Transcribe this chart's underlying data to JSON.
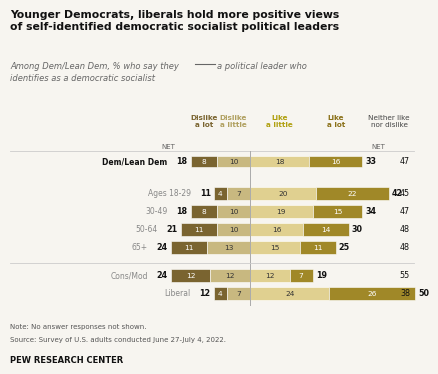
{
  "title": "Younger Democrats, liberals hold more positive views\nof self-identified democratic socialist political leaders",
  "subtitle": "Among Dem/Lean Dem, % who say they        a political leader who\nidentifies as a democratic socialist",
  "rows": [
    {
      "label": "Dem/Lean Dem",
      "bold_label": true,
      "net_dislike": 18,
      "dislike_lot": 8,
      "dislike_little": 10,
      "like_little": 18,
      "like_lot": 16,
      "net_like": 33,
      "neither": 47,
      "show_net_labels": true
    },
    {
      "label": "Ages 18-29",
      "bold_label": false,
      "net_dislike": 11,
      "dislike_lot": 4,
      "dislike_little": 7,
      "like_little": 20,
      "like_lot": 22,
      "net_like": 42,
      "neither": 45,
      "show_net_labels": false
    },
    {
      "label": "30-49",
      "bold_label": false,
      "net_dislike": 18,
      "dislike_lot": 8,
      "dislike_little": 10,
      "like_little": 19,
      "like_lot": 15,
      "net_like": 34,
      "neither": 47,
      "show_net_labels": false
    },
    {
      "label": "50-64",
      "bold_label": false,
      "net_dislike": 21,
      "dislike_lot": 11,
      "dislike_little": 10,
      "like_little": 16,
      "like_lot": 14,
      "net_like": 30,
      "neither": 48,
      "show_net_labels": false
    },
    {
      "label": "65+",
      "bold_label": false,
      "net_dislike": 24,
      "dislike_lot": 11,
      "dislike_little": 13,
      "like_little": 15,
      "like_lot": 11,
      "net_like": 25,
      "neither": 48,
      "show_net_labels": false
    },
    {
      "label": "Cons/Mod",
      "bold_label": false,
      "net_dislike": 24,
      "dislike_lot": 12,
      "dislike_little": 12,
      "like_little": 12,
      "like_lot": 7,
      "net_like": 19,
      "neither": 55,
      "show_net_labels": false
    },
    {
      "label": "Liberal",
      "bold_label": false,
      "net_dislike": 12,
      "dislike_lot": 4,
      "dislike_little": 7,
      "like_little": 24,
      "like_lot": 26,
      "net_like": 50,
      "neither": 38,
      "show_net_labels": false
    }
  ],
  "col_headers": [
    {
      "text": "Dislike\na lot",
      "color": "#7a6430",
      "x_ref": "dislike_lot"
    },
    {
      "text": "Dislike\na little",
      "color": "#b8a870",
      "x_ref": "dislike_little"
    },
    {
      "text": "Like\na little",
      "color": "#b8a820",
      "x_ref": "like_little"
    },
    {
      "text": "Like\na lot",
      "color": "#8a7418",
      "x_ref": "like_lot"
    }
  ],
  "colors": {
    "dislike_lot": "#7a6430",
    "dislike_little": "#c8b880",
    "like_little": "#e0d090",
    "like_lot": "#a08828"
  },
  "bg_color": "#f7f5f0",
  "note": "Note: No answer responses not shown.",
  "source": "Source: Survey of U.S. adults conducted June 27-July 4, 2022.",
  "footer": "PEW RESEARCH CENTER"
}
